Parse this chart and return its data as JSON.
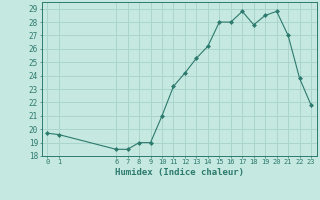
{
  "x": [
    0,
    1,
    6,
    7,
    8,
    9,
    10,
    11,
    12,
    13,
    14,
    15,
    16,
    17,
    18,
    19,
    20,
    21,
    22,
    23
  ],
  "y": [
    19.7,
    19.6,
    18.5,
    18.5,
    19.0,
    19.0,
    21.0,
    23.2,
    24.2,
    25.3,
    26.2,
    28.0,
    28.0,
    28.8,
    27.8,
    28.5,
    28.8,
    27.0,
    23.8,
    21.8
  ],
  "line_color": "#2d7a6e",
  "marker_color": "#2d7a6e",
  "bg_color": "#c5e8e0",
  "grid_color": "#aad4cc",
  "xlabel": "Humidex (Indice chaleur)",
  "ylim": [
    18,
    29.5
  ],
  "yticks": [
    18,
    19,
    20,
    21,
    22,
    23,
    24,
    25,
    26,
    27,
    28,
    29
  ],
  "xticks": [
    0,
    1,
    6,
    7,
    8,
    9,
    10,
    11,
    12,
    13,
    14,
    15,
    16,
    17,
    18,
    19,
    20,
    21,
    22,
    23
  ],
  "tick_color": "#2d7a6e",
  "xlabel_color": "#2d7a6e",
  "figsize": [
    3.2,
    2.0
  ],
  "dpi": 100
}
